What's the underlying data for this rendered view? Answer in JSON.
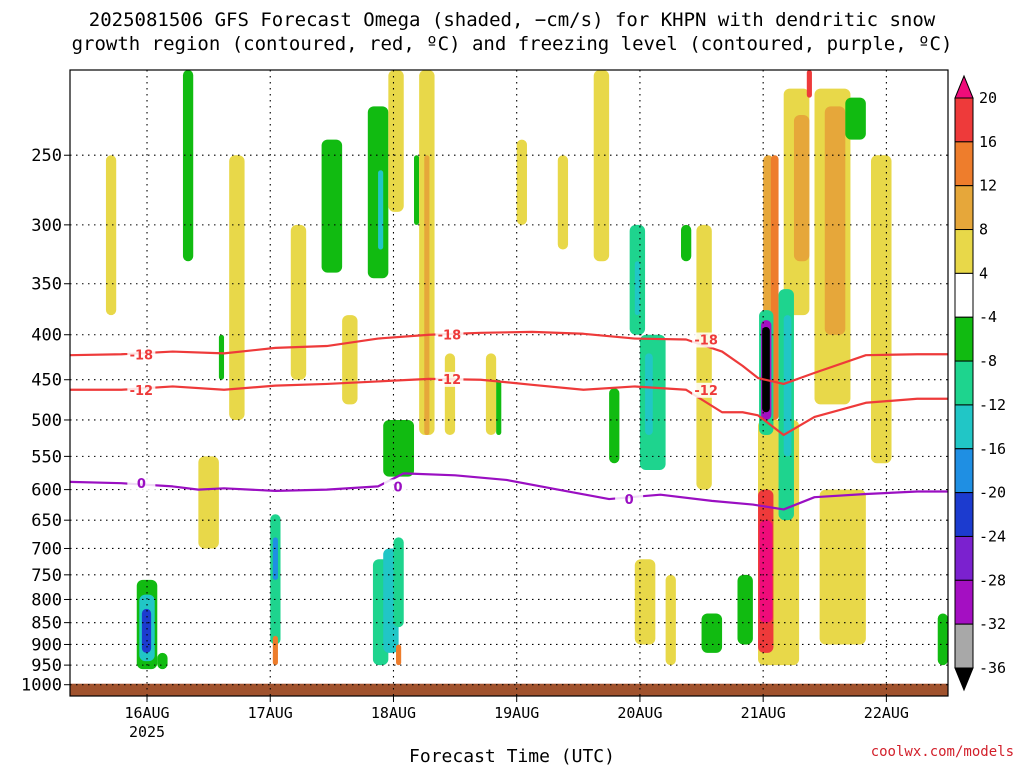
{
  "chart_data": {
    "type": "heatmap",
    "title": "2025081506 GFS Forecast Omega (shaded, −cm/s) for KHPN with dendritic snow",
    "subtitle": "growth region (contoured, red, ºC) and freezing level (contoured, purple, ºC)",
    "xlabel": "Forecast Time (UTC)",
    "ylabel": "",
    "y_scale": "log-pressure",
    "y_reversed": true,
    "ylim": [
      1000,
      200
    ],
    "y_ticks": [
      250,
      300,
      350,
      400,
      450,
      500,
      550,
      600,
      650,
      700,
      750,
      800,
      850,
      900,
      950,
      1000
    ],
    "x_ticks": [
      "16AUG",
      "17AUG",
      "18AUG",
      "19AUG",
      "20AUG",
      "21AUG",
      "22AUG"
    ],
    "x_tick_year": "2025",
    "xlim_hours": [
      -15,
      156
    ],
    "grid": true,
    "colorbar": {
      "labels": [
        "20",
        "16",
        "12",
        "8",
        "4",
        "-4",
        "-8",
        "-12",
        "-16",
        "-20",
        "-24",
        "-28",
        "-32",
        "-36"
      ],
      "colors": [
        "#ef0c7a",
        "#ee3a3a",
        "#ee7d2c",
        "#e6a73a",
        "#e8d849",
        "#ffffff",
        "#11bb11",
        "#1ed48e",
        "#21c6c6",
        "#1f8fe3",
        "#1c3bcf",
        "#7b21cf",
        "#a40fc2",
        "#a8a8a8",
        "#000000"
      ]
    },
    "contours": [
      {
        "label": "-18",
        "color": "#ee3a3a",
        "x": [
          -15,
          -5,
          5,
          15,
          25,
          35,
          45,
          55,
          65,
          75,
          85,
          95,
          105,
          112,
          116,
          119,
          124,
          130,
          140,
          150,
          156
        ],
        "y": [
          422,
          421,
          418,
          420,
          414,
          412,
          404,
          400,
          398,
          397,
          399,
          404,
          405,
          418,
          434,
          448,
          455,
          442,
          422,
          421,
          421
        ]
      },
      {
        "label": "-12",
        "color": "#ee3a3a",
        "x": [
          -15,
          -5,
          5,
          15,
          25,
          35,
          45,
          55,
          65,
          75,
          85,
          95,
          105,
          112,
          116,
          119,
          124,
          130,
          140,
          150,
          156
        ],
        "y": [
          462,
          462,
          458,
          462,
          457,
          455,
          452,
          449,
          450,
          456,
          462,
          458,
          462,
          490,
          490,
          494,
          520,
          496,
          478,
          473,
          473
        ]
      },
      {
        "label": "0",
        "color": "#9a0fc2",
        "x": [
          -15,
          -5,
          5,
          10,
          15,
          25,
          35,
          45,
          50,
          60,
          70,
          80,
          90,
          100,
          110,
          118,
          124,
          130,
          140,
          150,
          156
        ],
        "y": [
          588,
          590,
          595,
          600,
          598,
          602,
          600,
          595,
          575,
          578,
          585,
          600,
          615,
          608,
          618,
          624,
          632,
          612,
          607,
          603,
          603
        ]
      }
    ],
    "shaded_cells": [
      {
        "x0": 107,
        "x1": 110,
        "p0": 300,
        "p1": 600,
        "value": 5
      },
      {
        "x0": 120,
        "x1": 122,
        "p0": 250,
        "p1": 900,
        "value": 10
      },
      {
        "x0": 121.5,
        "x1": 123,
        "p0": 250,
        "p1": 500,
        "value": 14
      },
      {
        "x0": 124,
        "x1": 129,
        "p0": 210,
        "p1": 380,
        "value": 6
      },
      {
        "x0": 126,
        "x1": 129,
        "p0": 225,
        "p1": 330,
        "value": 10
      },
      {
        "x0": 130,
        "x1": 137,
        "p0": 210,
        "p1": 480,
        "value": 5
      },
      {
        "x0": 132,
        "x1": 136,
        "p0": 220,
        "p1": 400,
        "value": 9
      },
      {
        "x0": 128.5,
        "x1": 129.5,
        "p0": 200,
        "p1": 215,
        "value": 18
      },
      {
        "x0": 119,
        "x1": 127,
        "p0": 500,
        "p1": 950,
        "value": 5
      },
      {
        "x0": 119,
        "x1": 122,
        "p0": 600,
        "p1": 920,
        "value": 18
      },
      {
        "x0": 119.3,
        "x1": 121.8,
        "p0": 650,
        "p1": 850,
        "value": 22
      },
      {
        "x0": 119.2,
        "x1": 122,
        "p0": 375,
        "p1": 520,
        "value": -12
      },
      {
        "x0": 119.6,
        "x1": 121.6,
        "p0": 385,
        "p1": 500,
        "value": -30
      },
      {
        "x0": 119.8,
        "x1": 121.3,
        "p0": 392,
        "p1": 490,
        "value": -40
      },
      {
        "x0": 123,
        "x1": 126,
        "p0": 355,
        "p1": 650,
        "value": -9
      },
      {
        "x0": 124,
        "x1": 125.5,
        "p0": 380,
        "p1": 550,
        "value": -13
      },
      {
        "x0": 131,
        "x1": 140,
        "p0": 600,
        "p1": 900,
        "value": 5
      },
      {
        "x0": 115,
        "x1": 118,
        "p0": 750,
        "p1": 900,
        "value": -7
      },
      {
        "x0": 108,
        "x1": 112,
        "p0": 830,
        "p1": 920,
        "value": -7
      },
      {
        "x0": 154,
        "x1": 156,
        "p0": 830,
        "p1": 950,
        "value": -7
      },
      {
        "x0": 136,
        "x1": 140,
        "p0": 215,
        "p1": 240,
        "value": -7
      },
      {
        "x0": -2,
        "x1": 2,
        "p0": 760,
        "p1": 960,
        "value": -8
      },
      {
        "x0": -1.5,
        "x1": 1.5,
        "p0": 790,
        "p1": 940,
        "value": -13
      },
      {
        "x0": -1,
        "x1": 0.8,
        "p0": 820,
        "p1": 920,
        "value": -22
      },
      {
        "x0": 2,
        "x1": 4,
        "p0": 920,
        "p1": 960,
        "value": -8
      },
      {
        "x0": 24,
        "x1": 26,
        "p0": 640,
        "p1": 900,
        "value": -12
      },
      {
        "x0": 24.5,
        "x1": 25.5,
        "p0": 680,
        "p1": 760,
        "value": -18
      },
      {
        "x0": 24.5,
        "x1": 25.5,
        "p0": 880,
        "p1": 950,
        "value": 12
      },
      {
        "x0": 44,
        "x1": 47,
        "p0": 720,
        "p1": 950,
        "value": -9
      },
      {
        "x0": 46,
        "x1": 49,
        "p0": 700,
        "p1": 920,
        "value": -14
      },
      {
        "x0": 48,
        "x1": 50,
        "p0": 680,
        "p1": 860,
        "value": -9
      },
      {
        "x0": 48.5,
        "x1": 49.5,
        "p0": 900,
        "p1": 950,
        "value": 12
      },
      {
        "x0": 34,
        "x1": 38,
        "p0": 240,
        "p1": 340,
        "value": -8
      },
      {
        "x0": 43,
        "x1": 47,
        "p0": 220,
        "p1": 345,
        "value": -8
      },
      {
        "x0": 45,
        "x1": 46,
        "p0": 260,
        "p1": 320,
        "value": -13
      },
      {
        "x0": 7,
        "x1": 9,
        "p0": 200,
        "p1": 330,
        "value": -8
      },
      {
        "x0": 52,
        "x1": 53,
        "p0": 250,
        "p1": 300,
        "value": -8
      },
      {
        "x0": 46,
        "x1": 52,
        "p0": 500,
        "p1": 580,
        "value": -8
      },
      {
        "x0": 47,
        "x1": 50,
        "p0": 200,
        "p1": 290,
        "value": 5
      },
      {
        "x0": 53,
        "x1": 56,
        "p0": 200,
        "p1": 520,
        "value": 5
      },
      {
        "x0": 54,
        "x1": 55,
        "p0": 250,
        "p1": 520,
        "value": 8
      },
      {
        "x0": 94,
        "x1": 97,
        "p0": 300,
        "p1": 400,
        "value": -9
      },
      {
        "x0": 95,
        "x1": 96,
        "p0": 330,
        "p1": 380,
        "value": -14
      },
      {
        "x0": 96,
        "x1": 101,
        "p0": 400,
        "p1": 570,
        "value": -9
      },
      {
        "x0": 97,
        "x1": 98.5,
        "p0": 420,
        "p1": 520,
        "value": -13
      },
      {
        "x0": 87,
        "x1": 90,
        "p0": 200,
        "p1": 330,
        "value": 5
      },
      {
        "x0": 90,
        "x1": 92,
        "p0": 460,
        "p1": 560,
        "value": -8
      },
      {
        "x0": 95,
        "x1": 99,
        "p0": 720,
        "p1": 900,
        "value": 5
      },
      {
        "x0": 101,
        "x1": 103,
        "p0": 750,
        "p1": 950,
        "value": 5
      },
      {
        "x0": -8,
        "x1": -6,
        "p0": 250,
        "p1": 380,
        "value": 5
      },
      {
        "x0": 10,
        "x1": 14,
        "p0": 550,
        "p1": 700,
        "value": 5
      },
      {
        "x0": 16,
        "x1": 19,
        "p0": 250,
        "p1": 500,
        "value": 5
      },
      {
        "x0": 28,
        "x1": 31,
        "p0": 300,
        "p1": 450,
        "value": 5
      },
      {
        "x0": 38,
        "x1": 41,
        "p0": 380,
        "p1": 480,
        "value": 5
      },
      {
        "x0": 58,
        "x1": 60,
        "p0": 420,
        "p1": 520,
        "value": 5
      },
      {
        "x0": 66,
        "x1": 68,
        "p0": 420,
        "p1": 520,
        "value": 5
      },
      {
        "x0": 72,
        "x1": 74,
        "p0": 240,
        "p1": 300,
        "value": 5
      },
      {
        "x0": 80,
        "x1": 82,
        "p0": 250,
        "p1": 320,
        "value": 5
      },
      {
        "x0": 14,
        "x1": 15,
        "p0": 400,
        "p1": 450,
        "value": -8
      },
      {
        "x0": 68,
        "x1": 69,
        "p0": 450,
        "p1": 520,
        "value": -8
      },
      {
        "x0": 104,
        "x1": 106,
        "p0": 300,
        "p1": 330,
        "value": -8
      },
      {
        "x0": 141,
        "x1": 145,
        "p0": 250,
        "p1": 560,
        "value": 5
      }
    ],
    "surface_value_hpa": 1000
  },
  "watermark": "coolwx.com/models",
  "colors": {
    "ground": "#a0522d",
    "grid": "#000000",
    "frame": "#000000",
    "red_contour": "#ee3a3a",
    "purple_contour": "#9a0fc2"
  }
}
